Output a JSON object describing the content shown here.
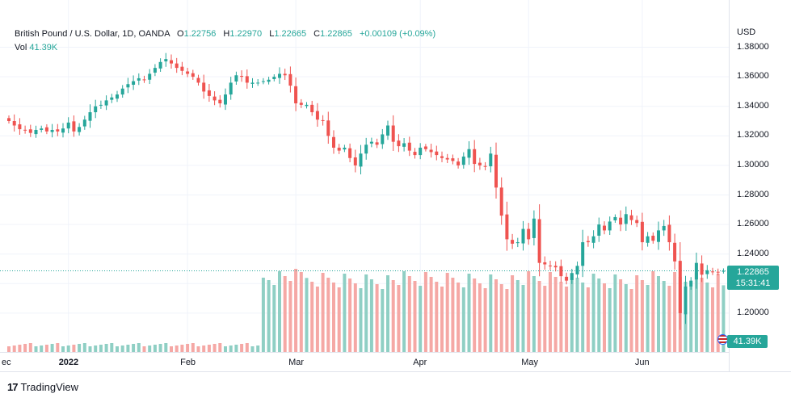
{
  "legend": {
    "symbol": "British Pound / U.S. Dollar, 1D, OANDA",
    "o_label": "O",
    "o_value": "1.22756",
    "h_label": "H",
    "h_value": "1.22970",
    "l_label": "L",
    "l_value": "1.22665",
    "c_label": "C",
    "c_value": "1.22865",
    "change": "+0.00109 (+0.09%)",
    "vol_label": "Vol",
    "vol_value": "41.39K"
  },
  "axis": {
    "currency": "USD"
  },
  "price_tag": {
    "price": "1.22865",
    "countdown": "15:31:41"
  },
  "volume_tag": {
    "value": "41.39K"
  },
  "brand": {
    "name": "TradingView"
  },
  "colors": {
    "up": "#26a69a",
    "down": "#ef5350",
    "vol_up": "#8fcfc4",
    "vol_down": "#f5a8a5",
    "grid": "#f0f3fa"
  },
  "chart_data": {
    "type": "candlestick",
    "title": "British Pound / U.S. Dollar, 1D, OANDA",
    "y_unit": "USD",
    "ylim": [
      1.18,
      1.39
    ],
    "y_ticks": [
      "1.38000",
      "1.36000",
      "1.34000",
      "1.32000",
      "1.30000",
      "1.28000",
      "1.26000",
      "1.24000",
      "1.22000",
      "1.20000"
    ],
    "x_ticks": [
      {
        "label": "ec",
        "bar": -2
      },
      {
        "label": "2022",
        "bar": 11,
        "bold": true
      },
      {
        "label": "Feb",
        "bar": 33
      },
      {
        "label": "Mar",
        "bar": 53
      },
      {
        "label": "Apr",
        "bar": 76
      },
      {
        "label": "May",
        "bar": 96
      },
      {
        "label": "Jun",
        "bar": 117
      }
    ],
    "grid": true,
    "current_price": 1.22865,
    "close": [
      1.33,
      1.327,
      1.3245,
      1.324,
      1.322,
      1.324,
      1.325,
      1.323,
      1.324,
      1.323,
      1.325,
      1.329,
      1.323,
      1.326,
      1.331,
      1.336,
      1.34,
      1.341,
      1.344,
      1.346,
      1.348,
      1.352,
      1.355,
      1.357,
      1.359,
      1.358,
      1.362,
      1.366,
      1.37,
      1.372,
      1.369,
      1.366,
      1.364,
      1.362,
      1.36,
      1.356,
      1.35,
      1.347,
      1.344,
      1.342,
      1.348,
      1.356,
      1.361,
      1.36,
      1.356,
      1.356,
      1.356,
      1.357,
      1.358,
      1.36,
      1.362,
      1.361,
      1.354,
      1.342,
      1.341,
      1.341,
      1.336,
      1.331,
      1.33,
      1.32,
      1.312,
      1.31,
      1.312,
      1.305,
      1.3,
      1.308,
      1.314,
      1.316,
      1.314,
      1.321,
      1.327,
      1.316,
      1.313,
      1.315,
      1.31,
      1.307,
      1.312,
      1.311,
      1.309,
      1.307,
      1.305,
      1.304,
      1.303,
      1.3,
      1.306,
      1.311,
      1.301,
      1.3,
      1.299,
      1.308,
      1.285,
      1.266,
      1.25,
      1.247,
      1.248,
      1.257,
      1.25,
      1.264,
      1.234,
      1.233,
      1.232,
      1.231,
      1.225,
      1.222,
      1.227,
      1.232,
      1.248,
      1.248,
      1.252,
      1.26,
      1.256,
      1.262,
      1.265,
      1.26,
      1.267,
      1.263,
      1.261,
      1.248,
      1.252,
      1.249,
      1.256,
      1.259,
      1.248,
      1.235,
      1.2,
      1.218,
      1.222,
      1.234,
      1.226,
      1.229,
      1.228,
      1.2275,
      1.2286
    ]
  }
}
